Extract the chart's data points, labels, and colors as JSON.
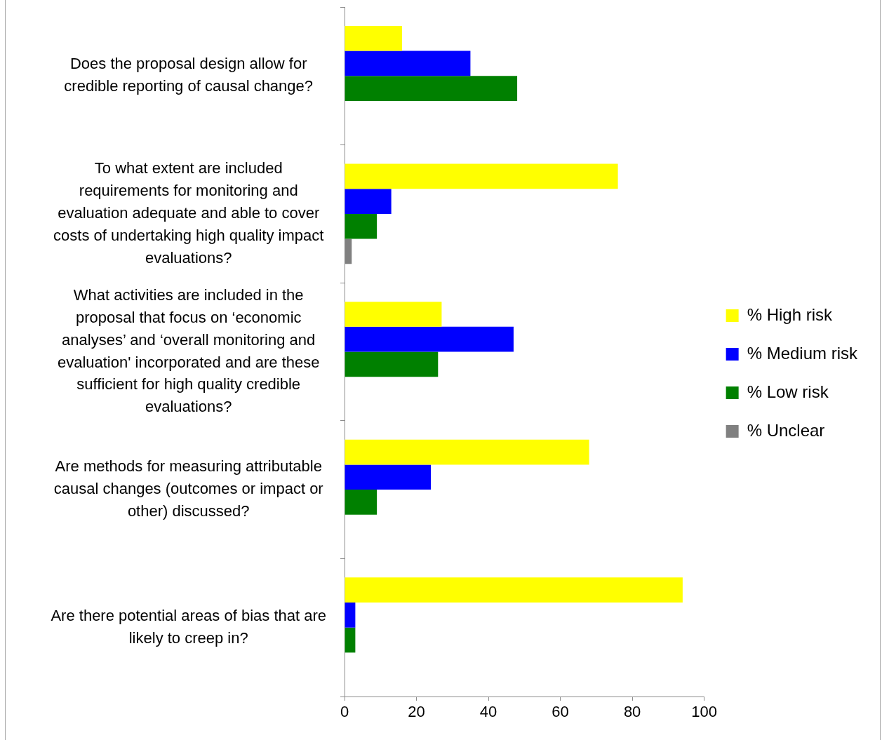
{
  "chart_data": {
    "type": "bar",
    "orientation": "horizontal",
    "categories": [
      "Does the proposal design allow for credible reporting of causal change?",
      "To what extent are included requirements for monitoring and evaluation adequate and able to cover costs of undertaking high quality impact evaluations?",
      "What activities are included in the proposal that focus on ‘economic analyses’ and ‘overall monitoring and evaluation' incorporated and are these sufficient for high quality credible evaluations?",
      "Are methods for measuring attributable causal changes (outcomes or impact or other) discussed?",
      "Are there potential areas of bias that are likely to creep in?"
    ],
    "series": [
      {
        "name": "% High risk",
        "color": "#ffff00",
        "values": [
          16,
          76,
          27,
          68,
          94
        ]
      },
      {
        "name": "% Medium risk",
        "color": "#0000ff",
        "values": [
          35,
          13,
          47,
          24,
          3
        ]
      },
      {
        "name": "% Low risk",
        "color": "#008000",
        "values": [
          48,
          9,
          26,
          9,
          3
        ]
      },
      {
        "name": "% Unclear",
        "color": "#808080",
        "values": [
          null,
          2,
          null,
          null,
          null
        ]
      }
    ],
    "xlim": [
      0,
      100
    ],
    "xticks": [
      0,
      20,
      40,
      60,
      80,
      100
    ],
    "grid": false,
    "legend": "right"
  }
}
